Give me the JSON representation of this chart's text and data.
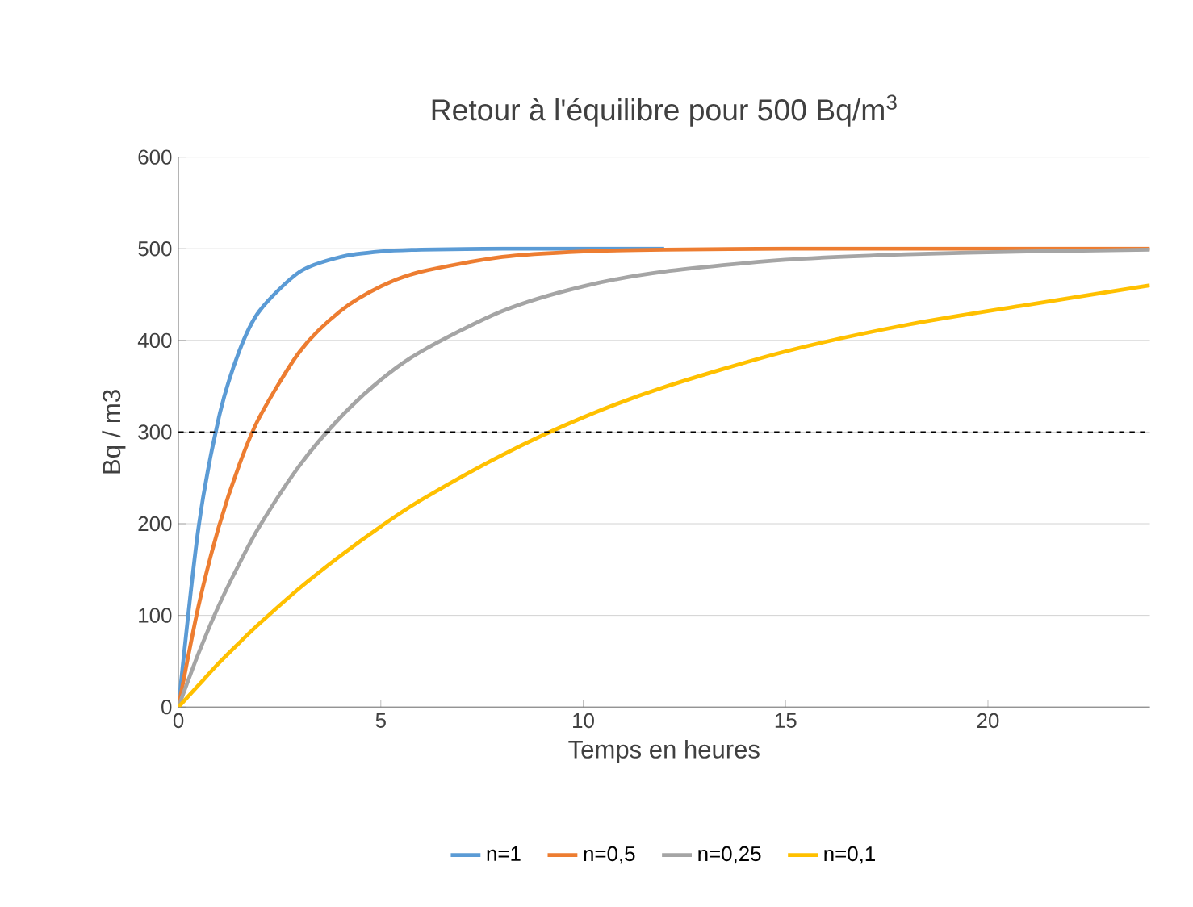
{
  "chart_data": {
    "type": "line",
    "title": "Retour à l'équilibre pour 500 Bq/m$^{3}$",
    "xlabel": "Temps en heures",
    "ylabel": "Bq / m3",
    "x": [
      0,
      0.5,
      1,
      1.5,
      2,
      3,
      4,
      5,
      6,
      8,
      10,
      12,
      15,
      18,
      21,
      24
    ],
    "series": [
      {
        "name": "n=1",
        "color": "#5b9bd5",
        "values": [
          0,
          197,
          316,
          388,
          432,
          475,
          491,
          497,
          499,
          500,
          500,
          500,
          null,
          null,
          null,
          null
        ]
      },
      {
        "name": "n=0,5",
        "color": "#ed7d31",
        "values": [
          0,
          111,
          197,
          264,
          316,
          388,
          432,
          459,
          475,
          491,
          497,
          499,
          500,
          500,
          500,
          500
        ]
      },
      {
        "name": "n=0,25",
        "color": "#a5a5a5",
        "values": [
          0,
          59,
          111,
          156,
          197,
          264,
          316,
          357,
          388,
          432,
          459,
          475,
          488,
          494,
          497,
          499
        ]
      },
      {
        "name": "n=0,1",
        "color": "#ffc000",
        "values": [
          0,
          24,
          48,
          70,
          91,
          130,
          165,
          197,
          226,
          275,
          316,
          349,
          388,
          417,
          439,
          460
        ]
      }
    ],
    "xlim": [
      0,
      24
    ],
    "xticks": [
      0,
      5,
      10,
      15,
      20
    ],
    "ylim": [
      0,
      600
    ],
    "yticks": [
      0,
      100,
      200,
      300,
      400,
      500,
      600
    ],
    "grid": "y",
    "legend": "bottom",
    "marker": "none",
    "line_style": "solid",
    "ref_lines": [
      {
        "axis": "y",
        "value": 300,
        "color": "#000000",
        "line_style": "dashed"
      }
    ]
  }
}
